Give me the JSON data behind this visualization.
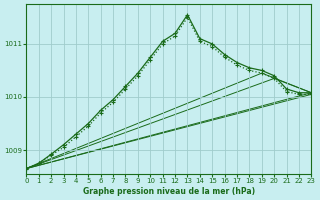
{
  "title": "Graphe pression niveau de la mer (hPa)",
  "background_color": "#c8eef0",
  "grid_color": "#a0cccc",
  "line_color": "#1a6b1a",
  "xlim": [
    0,
    23
  ],
  "ylim": [
    1008.55,
    1011.75
  ],
  "yticks": [
    1009,
    1010,
    1011
  ],
  "xticks": [
    0,
    1,
    2,
    3,
    4,
    5,
    6,
    7,
    8,
    9,
    10,
    11,
    12,
    13,
    14,
    15,
    16,
    17,
    18,
    19,
    20,
    21,
    22,
    23
  ],
  "curve_dotted": {
    "x": [
      0,
      1,
      2,
      3,
      4,
      5,
      6,
      7,
      8,
      9,
      10,
      11,
      12,
      13,
      14,
      15,
      16,
      17,
      18,
      19,
      20,
      21,
      22,
      23
    ],
    "y": [
      1008.65,
      1008.75,
      1008.9,
      1009.05,
      1009.25,
      1009.45,
      1009.7,
      1009.9,
      1010.15,
      1010.4,
      1010.7,
      1011.0,
      1011.15,
      1011.5,
      1011.05,
      1010.95,
      1010.75,
      1010.6,
      1010.5,
      1010.45,
      1010.35,
      1010.1,
      1010.05,
      1010.05
    ]
  },
  "curve_solid": {
    "x": [
      0,
      1,
      2,
      3,
      4,
      5,
      6,
      7,
      8,
      9,
      10,
      11,
      12,
      13,
      14,
      15,
      16,
      17,
      18,
      19,
      20,
      21,
      22,
      23
    ],
    "y": [
      1008.65,
      1008.75,
      1008.92,
      1009.1,
      1009.3,
      1009.5,
      1009.75,
      1009.95,
      1010.2,
      1010.45,
      1010.75,
      1011.05,
      1011.2,
      1011.55,
      1011.1,
      1011.0,
      1010.8,
      1010.65,
      1010.55,
      1010.5,
      1010.4,
      1010.15,
      1010.08,
      1010.08
    ]
  },
  "fan_lines": [
    {
      "x": [
        0,
        23
      ],
      "y": [
        1008.65,
        1010.08
      ]
    },
    {
      "x": [
        0,
        23
      ],
      "y": [
        1008.65,
        1010.05
      ]
    },
    {
      "x": [
        0,
        20,
        23
      ],
      "y": [
        1008.65,
        1010.35,
        1010.08
      ]
    },
    {
      "x": [
        0,
        19,
        23
      ],
      "y": [
        1008.65,
        1010.45,
        1010.08
      ]
    }
  ]
}
